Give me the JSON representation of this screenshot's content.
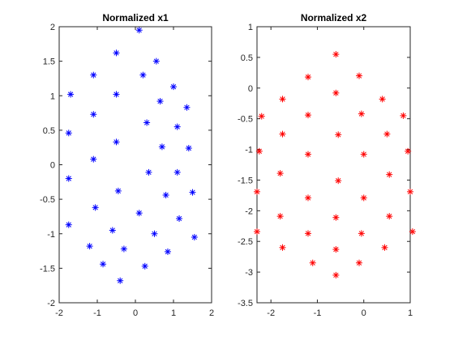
{
  "chart_data": [
    {
      "type": "scatter",
      "title": "Normalized x1",
      "xlim": [
        -2,
        2
      ],
      "ylim": [
        -2,
        2
      ],
      "xticks": [
        -2,
        -1,
        0,
        1,
        2
      ],
      "xtick_labels": [
        "-2",
        "-1",
        "0",
        "1",
        "2"
      ],
      "yticks": [
        -2,
        -1.5,
        -1,
        -0.5,
        0,
        0.5,
        1,
        1.5,
        2
      ],
      "ytick_labels": [
        "-2",
        "-1.5",
        "-1",
        "-0.5",
        "0",
        "0.5",
        "1",
        "1.5",
        "2"
      ],
      "grid": false,
      "marker": "*",
      "color": "#0000ff",
      "points": [
        [
          0.1,
          1.95
        ],
        [
          -0.5,
          1.62
        ],
        [
          0.55,
          1.5
        ],
        [
          -1.1,
          1.3
        ],
        [
          0.2,
          1.3
        ],
        [
          1.0,
          1.13
        ],
        [
          -1.7,
          1.02
        ],
        [
          -0.5,
          1.02
        ],
        [
          0.65,
          0.92
        ],
        [
          1.35,
          0.83
        ],
        [
          -1.1,
          0.73
        ],
        [
          0.3,
          0.61
        ],
        [
          1.1,
          0.55
        ],
        [
          -1.75,
          0.46
        ],
        [
          -0.5,
          0.33
        ],
        [
          0.7,
          0.26
        ],
        [
          1.4,
          0.24
        ],
        [
          -1.1,
          0.08
        ],
        [
          0.35,
          -0.11
        ],
        [
          1.1,
          -0.11
        ],
        [
          -1.75,
          -0.2
        ],
        [
          -0.45,
          -0.38
        ],
        [
          0.8,
          -0.44
        ],
        [
          1.5,
          -0.4
        ],
        [
          -1.05,
          -0.62
        ],
        [
          0.1,
          -0.7
        ],
        [
          1.15,
          -0.78
        ],
        [
          -1.75,
          -0.87
        ],
        [
          -0.6,
          -0.95
        ],
        [
          0.5,
          -1.0
        ],
        [
          1.55,
          -1.05
        ],
        [
          -1.2,
          -1.18
        ],
        [
          -0.3,
          -1.22
        ],
        [
          0.85,
          -1.26
        ],
        [
          -0.85,
          -1.44
        ],
        [
          0.25,
          -1.47
        ],
        [
          -0.4,
          -1.68
        ]
      ]
    },
    {
      "type": "scatter",
      "title": "Normalized x2",
      "xlim": [
        -2.3,
        1.0
      ],
      "ylim": [
        -3.5,
        1
      ],
      "xticks": [
        -2,
        -1,
        0,
        1
      ],
      "xtick_labels": [
        "-2",
        "-1",
        "0",
        "1"
      ],
      "yticks": [
        -3.5,
        -3,
        -2.5,
        -2,
        -1.5,
        -1,
        -0.5,
        0,
        0.5,
        1
      ],
      "ytick_labels": [
        "-3.5",
        "-3",
        "-2.5",
        "-2",
        "-1.5",
        "-1",
        "-0.5",
        "0",
        "0.5",
        "1"
      ],
      "grid": false,
      "marker": "*",
      "color": "#ff0000",
      "points": [
        [
          -0.6,
          0.55
        ],
        [
          -1.2,
          0.18
        ],
        [
          -0.1,
          0.2
        ],
        [
          -1.75,
          -0.18
        ],
        [
          -0.6,
          -0.08
        ],
        [
          0.4,
          -0.18
        ],
        [
          -2.2,
          -0.46
        ],
        [
          -1.2,
          -0.44
        ],
        [
          -0.05,
          -0.42
        ],
        [
          0.85,
          -0.45
        ],
        [
          -1.75,
          -0.75
        ],
        [
          -0.55,
          -0.76
        ],
        [
          0.5,
          -0.75
        ],
        [
          -2.25,
          -1.03
        ],
        [
          -1.2,
          -1.08
        ],
        [
          0.0,
          -1.08
        ],
        [
          0.95,
          -1.03
        ],
        [
          -1.8,
          -1.39
        ],
        [
          -0.55,
          -1.51
        ],
        [
          0.55,
          -1.41
        ],
        [
          -2.3,
          -1.69
        ],
        [
          -1.2,
          -1.79
        ],
        [
          0.0,
          -1.79
        ],
        [
          1.0,
          -1.69
        ],
        [
          -1.8,
          -2.09
        ],
        [
          -0.6,
          -2.11
        ],
        [
          0.55,
          -2.09
        ],
        [
          -2.3,
          -2.34
        ],
        [
          -1.2,
          -2.37
        ],
        [
          -0.05,
          -2.37
        ],
        [
          1.05,
          -2.34
        ],
        [
          -1.75,
          -2.6
        ],
        [
          -0.6,
          -2.63
        ],
        [
          0.45,
          -2.6
        ],
        [
          -1.1,
          -2.85
        ],
        [
          -0.1,
          -2.85
        ],
        [
          -0.6,
          -3.05
        ]
      ]
    }
  ]
}
